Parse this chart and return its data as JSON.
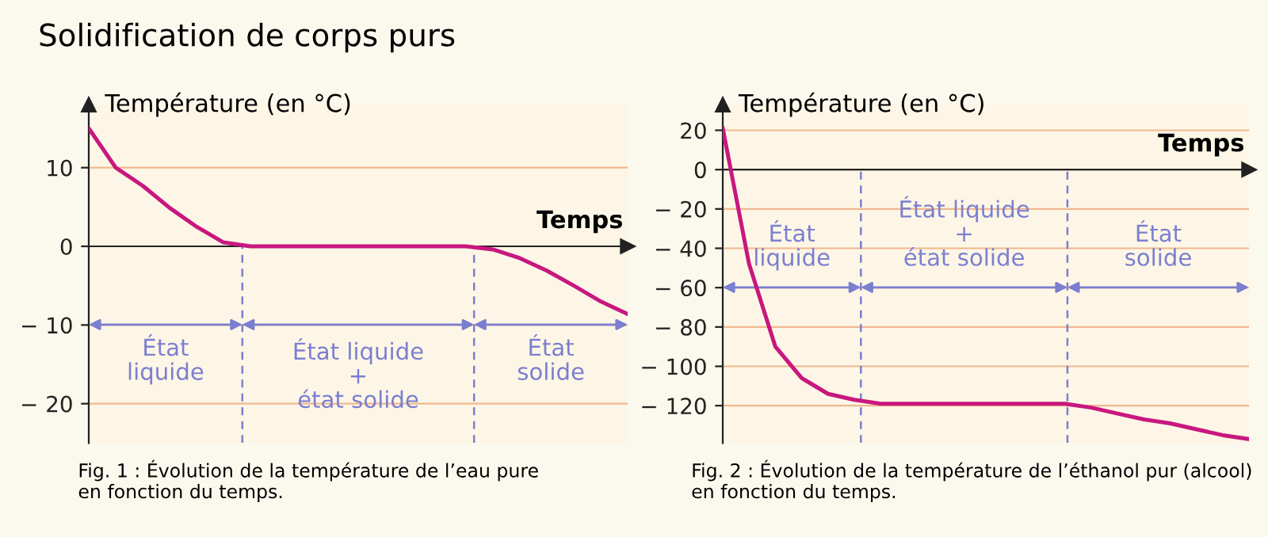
{
  "chart_data": [
    {
      "type": "line",
      "title": "Solidification de corps purs",
      "ylabel": "Température (en °C)",
      "xlabel": "Temps",
      "categories": [
        null,
        null,
        null,
        null,
        null,
        null,
        null,
        null,
        null,
        null,
        null,
        null,
        null,
        null,
        null,
        null,
        null,
        null,
        null,
        null,
        null
      ],
      "series": [
        {
          "color": "#c8177f",
          "values": [
            15,
            10,
            7.7,
            4.9,
            2.5,
            0.5,
            0,
            0,
            0,
            0,
            0,
            0,
            0,
            0,
            0,
            -0.4,
            -1.5,
            -3.1,
            -5,
            -7,
            -8.6
          ]
        }
      ],
      "ylim": [
        -25,
        18
      ],
      "yticks": [
        {
          "value": 10,
          "label": "10"
        },
        {
          "value": 0,
          "label": "0"
        },
        {
          "value": -10,
          "label": "− 10"
        },
        {
          "value": -20,
          "label": "− 20"
        }
      ],
      "tick_labels": "y",
      "grid": "y",
      "legend": false,
      "marker": "none",
      "line_style": "solid",
      "annotations": [
        "Fig. 1 : Évolution de la température de l’eau pure\nen fonction du temps.",
        "État\nliquide",
        "État liquide\n+\nétat solide",
        "État\nsolide"
      ]
    },
    {
      "type": "line",
      "ylabel": "Température (en °C)",
      "xlabel": "Temps",
      "categories": [
        null,
        null,
        null,
        null,
        null,
        null,
        null,
        null,
        null,
        null,
        null,
        null,
        null,
        null,
        null,
        null,
        null,
        null,
        null,
        null,
        null
      ],
      "series": [
        {
          "color": "#c8177f",
          "values": [
            21,
            -48,
            -90,
            -106,
            -114,
            -117,
            -119,
            -119,
            -119,
            -119,
            -119,
            -119,
            -119,
            -119,
            -121,
            -124,
            -127,
            -129,
            -132,
            -135,
            -137
          ]
        }
      ],
      "ylim": [
        -139,
        33
      ],
      "yticks": [
        {
          "value": 20,
          "label": "20"
        },
        {
          "value": 0,
          "label": "0"
        },
        {
          "value": -20,
          "label": "− 20"
        },
        {
          "value": -40,
          "label": "− 40"
        },
        {
          "value": -60,
          "label": "− 60"
        },
        {
          "value": -80,
          "label": "− 80"
        },
        {
          "value": -100,
          "label": "− 100"
        },
        {
          "value": -120,
          "label": "− 120"
        }
      ],
      "tick_labels": "y",
      "grid": "y",
      "legend": false,
      "marker": "none",
      "line_style": "solid",
      "annotations": [
        "Fig. 2 : Évolution de la température de l’éthanol pur (alcool)\nen fonction du temps.",
        "État\nliquide",
        "État liquide\n+\nétat solide",
        "État\nsolide"
      ]
    }
  ]
}
